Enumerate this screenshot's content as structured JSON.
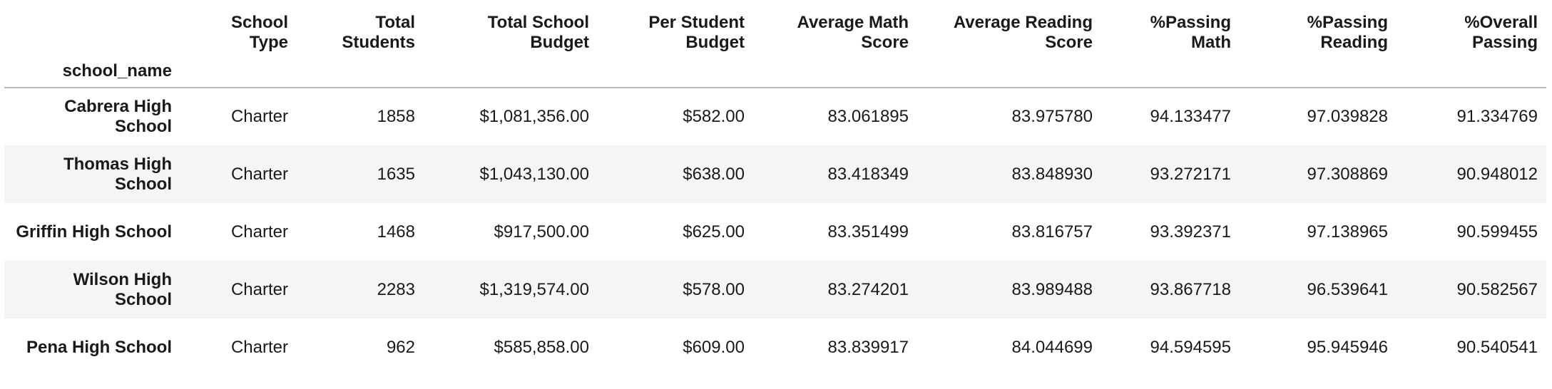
{
  "table": {
    "index_name": "school_name",
    "columns": [
      "School\nType",
      "Total\nStudents",
      "Total School\nBudget",
      "Per Student\nBudget",
      "Average Math\nScore",
      "Average Reading\nScore",
      "%Passing\nMath",
      "%Passing\nReading",
      "%Overall\nPassing"
    ],
    "rows": [
      {
        "school_name": "Cabrera High School",
        "cells": [
          "Charter",
          "1858",
          "$1,081,356.00",
          "$582.00",
          "83.061895",
          "83.975780",
          "94.133477",
          "97.039828",
          "91.334769"
        ]
      },
      {
        "school_name": "Thomas High School",
        "cells": [
          "Charter",
          "1635",
          "$1,043,130.00",
          "$638.00",
          "83.418349",
          "83.848930",
          "93.272171",
          "97.308869",
          "90.948012"
        ]
      },
      {
        "school_name": "Griffin High School",
        "cells": [
          "Charter",
          "1468",
          "$917,500.00",
          "$625.00",
          "83.351499",
          "83.816757",
          "93.392371",
          "97.138965",
          "90.599455"
        ]
      },
      {
        "school_name": "Wilson High School",
        "cells": [
          "Charter",
          "2283",
          "$1,319,574.00",
          "$578.00",
          "83.274201",
          "83.989488",
          "93.867718",
          "96.539641",
          "90.582567"
        ]
      },
      {
        "school_name": "Pena High School",
        "cells": [
          "Charter",
          "962",
          "$585,858.00",
          "$609.00",
          "83.839917",
          "84.044699",
          "94.594595",
          "95.945946",
          "90.540541"
        ]
      }
    ]
  }
}
